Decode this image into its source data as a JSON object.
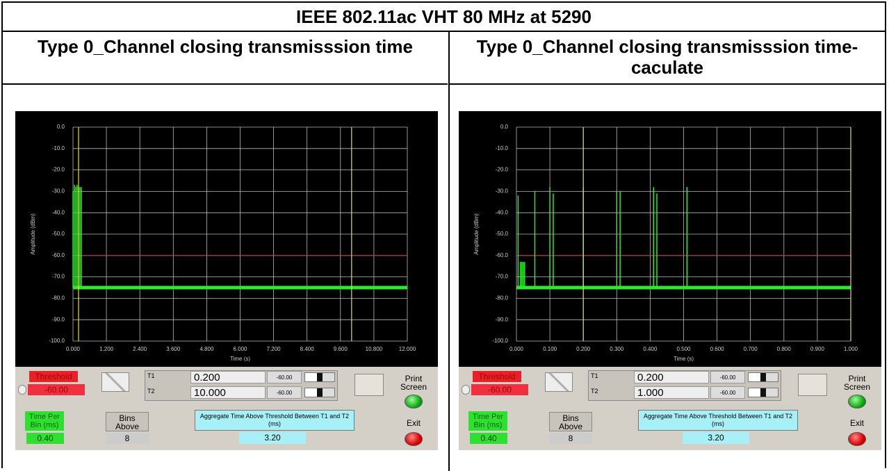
{
  "header": {
    "title": "IEEE 802.11ac VHT 80 MHz at 5290"
  },
  "columns": [
    {
      "heading": "Type 0_Channel closing transmisssion time",
      "chart": {
        "type": "line",
        "ylabel": "Amplitude (dBm)",
        "xlabel": "Time (s)",
        "xlim": [
          0,
          12
        ],
        "xticks": [
          {
            "value": 0,
            "label": "0.000"
          },
          {
            "value": 1.2,
            "label": "1.200"
          },
          {
            "value": 2.4,
            "label": "2.400"
          },
          {
            "value": 3.6,
            "label": "3.600"
          },
          {
            "value": 4.8,
            "label": "4.800"
          },
          {
            "value": 6,
            "label": "6.000"
          },
          {
            "value": 7.2,
            "label": "7.200"
          },
          {
            "value": 8.4,
            "label": "8.400"
          },
          {
            "value": 9.6,
            "label": "9.600"
          },
          {
            "value": 10.8,
            "label": "10.800"
          },
          {
            "value": 12,
            "label": "12.000"
          }
        ],
        "ylim": [
          -100,
          0
        ],
        "yticks": [
          {
            "value": 0,
            "label": "0.0"
          },
          {
            "value": -10,
            "label": "-10.0"
          },
          {
            "value": -20,
            "label": "-20.0"
          },
          {
            "value": -30,
            "label": "-30.0"
          },
          {
            "value": -40,
            "label": "-40.0"
          },
          {
            "value": -50,
            "label": "-50.0"
          },
          {
            "value": -60,
            "label": "-60.0"
          },
          {
            "value": -70,
            "label": "-70.0"
          },
          {
            "value": -80,
            "label": "-80.0"
          },
          {
            "value": -90,
            "label": "-90.0"
          },
          {
            "value": -100,
            "label": "-100.0"
          }
        ],
        "noise_floor": -75,
        "pulses": {
          "x": [
            0.0,
            0.05,
            0.1,
            0.15,
            0.2,
            0.25,
            0.3
          ],
          "values": [
            -30,
            -27,
            -28,
            -27,
            -28,
            -28,
            -28
          ]
        }
      },
      "controls": {
        "threshold_label": "Threshold",
        "threshold": {
          "value": -60,
          "label": "-60.00"
        },
        "t1_label": "T1",
        "t1": {
          "value": 0.2,
          "label": "0.200"
        },
        "t1_amp": "-60.00",
        "t2_label": "T2",
        "t2": {
          "value": 10,
          "label": "10.000"
        },
        "t2_amp": "-60.00",
        "print": "Print Screen",
        "time_per_bin_label": "Time Per Bin (ms)",
        "time_per_bin": "0.40",
        "bins_label": "Bins Above",
        "bins": "8",
        "aggregate_label": "Aggregate Time Above Threshold Between T1 and T2 (ms)",
        "aggregate": "3.20",
        "exit": "Exit"
      }
    },
    {
      "heading": "Type 0_Channel closing transmisssion time-caculate",
      "chart": {
        "type": "line",
        "ylabel": "Amplitude (dBm)",
        "xlabel": "Time (s)",
        "xlim": [
          0,
          1
        ],
        "xticks": [
          {
            "value": 0,
            "label": "0.000"
          },
          {
            "value": 0.1,
            "label": "0.100"
          },
          {
            "value": 0.2,
            "label": "0.200"
          },
          {
            "value": 0.3,
            "label": "0.300"
          },
          {
            "value": 0.4,
            "label": "0.400"
          },
          {
            "value": 0.5,
            "label": "0.500"
          },
          {
            "value": 0.6,
            "label": "0.600"
          },
          {
            "value": 0.7,
            "label": "0.700"
          },
          {
            "value": 0.8,
            "label": "0.800"
          },
          {
            "value": 0.9,
            "label": "0.900"
          },
          {
            "value": 1,
            "label": "1.000"
          }
        ],
        "ylim": [
          -100,
          0
        ],
        "yticks": [
          {
            "value": 0,
            "label": "0.0"
          },
          {
            "value": -10,
            "label": "-10.0"
          },
          {
            "value": -20,
            "label": "-20.0"
          },
          {
            "value": -30,
            "label": "-30.0"
          },
          {
            "value": -40,
            "label": "-40.0"
          },
          {
            "value": -50,
            "label": "-50.0"
          },
          {
            "value": -60,
            "label": "-60.0"
          },
          {
            "value": -70,
            "label": "-70.0"
          },
          {
            "value": -80,
            "label": "-80.0"
          },
          {
            "value": -90,
            "label": "-90.0"
          },
          {
            "value": -100,
            "label": "-100.0"
          }
        ],
        "noise_floor": -75,
        "pulses": {
          "x": [
            0.005,
            0.012,
            0.016,
            0.02,
            0.024,
            0.055,
            0.1,
            0.11,
            0.2,
            0.3,
            0.31,
            0.41,
            0.42,
            0.51
          ],
          "values": [
            -32,
            -63,
            -63,
            -63,
            -63,
            -30,
            -28,
            -31,
            -28,
            -30,
            -30,
            -28,
            -31,
            -28
          ]
        }
      },
      "controls": {
        "threshold_label": "Threshold",
        "threshold": {
          "value": -60,
          "label": "-60.00"
        },
        "t1_label": "T1",
        "t1": {
          "value": 0.2,
          "label": "0.200"
        },
        "t1_amp": "-60.00",
        "t2_label": "T2",
        "t2": {
          "value": 1,
          "label": "1.000"
        },
        "t2_amp": "-60.00",
        "print": "Print Screen",
        "time_per_bin_label": "Time Per Bin (ms)",
        "time_per_bin": "0.40",
        "bins_label": "Bins Above",
        "bins": "8",
        "aggregate_label": "Aggregate Time Above Threshold Between T1 and T2 (ms)",
        "aggregate": "3.20",
        "exit": "Exit"
      }
    }
  ]
}
